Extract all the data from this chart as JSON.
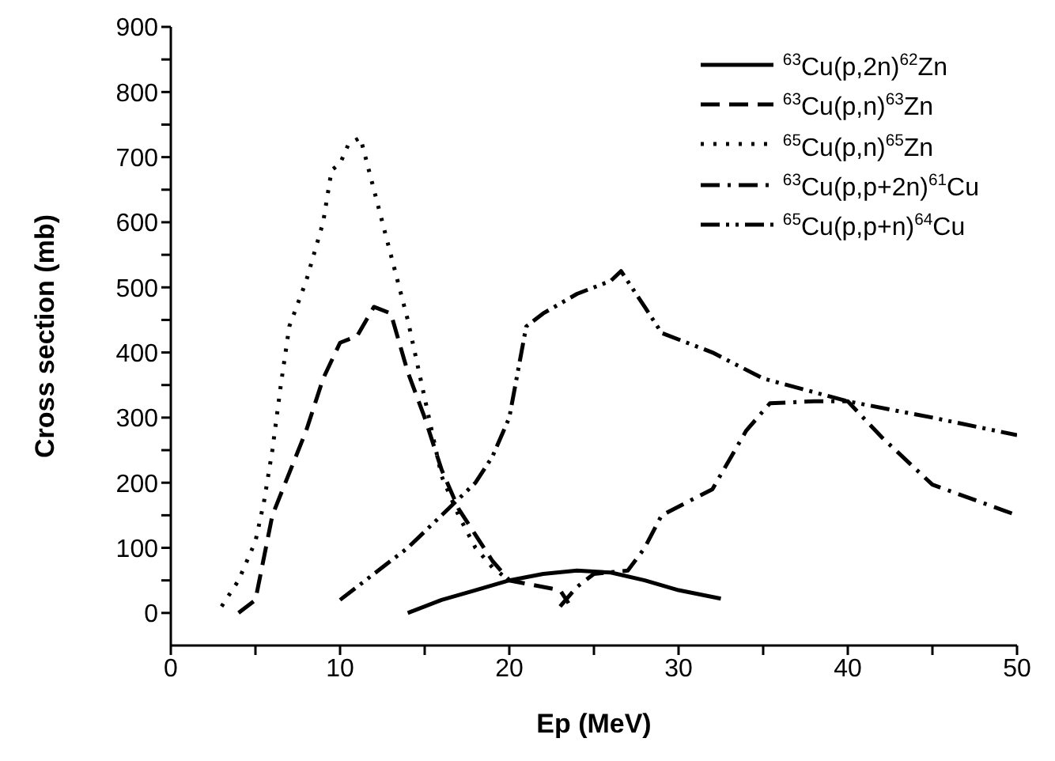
{
  "chart_data": {
    "type": "line",
    "xlabel": "Ep (MeV)",
    "ylabel": "Cross section (mb)",
    "xlim": [
      0,
      50
    ],
    "xticks": [
      0,
      {
        "value": 5,
        "label": null
      },
      10,
      {
        "value": 15,
        "label": null
      },
      20,
      {
        "value": 25,
        "label": null
      },
      30,
      {
        "value": 35,
        "label": null
      },
      40,
      {
        "value": 45,
        "label": null
      },
      50
    ],
    "ylim": [
      -50,
      900
    ],
    "yticks": [
      0,
      {
        "value": 50,
        "label": null
      },
      100,
      {
        "value": 150,
        "label": null
      },
      200,
      {
        "value": 250,
        "label": null
      },
      300,
      {
        "value": 350,
        "label": null
      },
      400,
      {
        "value": 450,
        "label": null
      },
      500,
      {
        "value": 550,
        "label": null
      },
      600,
      {
        "value": 650,
        "label": null
      },
      700,
      {
        "value": 750,
        "label": null
      },
      800,
      {
        "value": 850,
        "label": null
      },
      900
    ],
    "legend": "top right",
    "marker": "none",
    "series": [
      {
        "name": "$^{63}$Cu(p,2n)$^{62}$Zn",
        "color": "#000000",
        "line_style": "solid",
        "x": [
          14,
          16,
          18,
          20,
          22,
          24,
          26,
          28,
          30,
          32.5
        ],
        "values": [
          0,
          20,
          35,
          50,
          60,
          65,
          62,
          50,
          35,
          22
        ]
      },
      {
        "name": "$^{63}$Cu(p,n)$^{63}$Zn",
        "color": "#000000",
        "line_style": "dashed",
        "x": [
          4,
          5,
          6,
          8,
          9,
          10,
          11,
          12,
          13,
          14,
          15,
          16,
          17,
          18,
          19,
          20,
          21,
          23,
          23.5
        ],
        "values": [
          0,
          20,
          150,
          280,
          360,
          415,
          425,
          470,
          460,
          370,
          300,
          220,
          160,
          120,
          80,
          50,
          45,
          35,
          15
        ]
      },
      {
        "name": "$^{65}$Cu(p,n)$^{65}$Zn",
        "color": "#000000",
        "line_style": "dotted",
        "x": [
          3,
          4,
          5,
          5.5,
          6,
          6.5,
          7,
          8,
          9,
          9.5,
          10,
          10.5,
          11.2,
          12,
          13,
          14,
          15,
          16,
          17,
          18,
          19,
          20
        ],
        "values": [
          10,
          50,
          110,
          170,
          250,
          350,
          440,
          510,
          600,
          680,
          690,
          720,
          730,
          650,
          550,
          450,
          330,
          210,
          150,
          100,
          70,
          50
        ]
      },
      {
        "name": "$^{63}$Cu(p,p+2n)$^{61}$Cu",
        "color": "#000000",
        "line_style": "dashdot",
        "x": [
          23,
          24,
          25,
          27,
          28,
          29,
          32,
          34,
          35.4,
          38,
          40,
          42,
          45,
          50
        ],
        "values": [
          10,
          40,
          60,
          65,
          100,
          150,
          190,
          280,
          322,
          325,
          325,
          270,
          197,
          150
        ]
      },
      {
        "name": "$^{65}$Cu(p,p+n)$^{64}$Cu",
        "color": "#000000",
        "line_style": "dashdotdot",
        "x": [
          10,
          12,
          14,
          16,
          18,
          19,
          20,
          21,
          22,
          24,
          26,
          26.6,
          28,
          29,
          32,
          35,
          40,
          45,
          50
        ],
        "values": [
          20,
          60,
          100,
          150,
          200,
          240,
          300,
          440,
          460,
          490,
          510,
          525,
          470,
          430,
          400,
          360,
          325,
          300,
          273
        ]
      }
    ]
  }
}
